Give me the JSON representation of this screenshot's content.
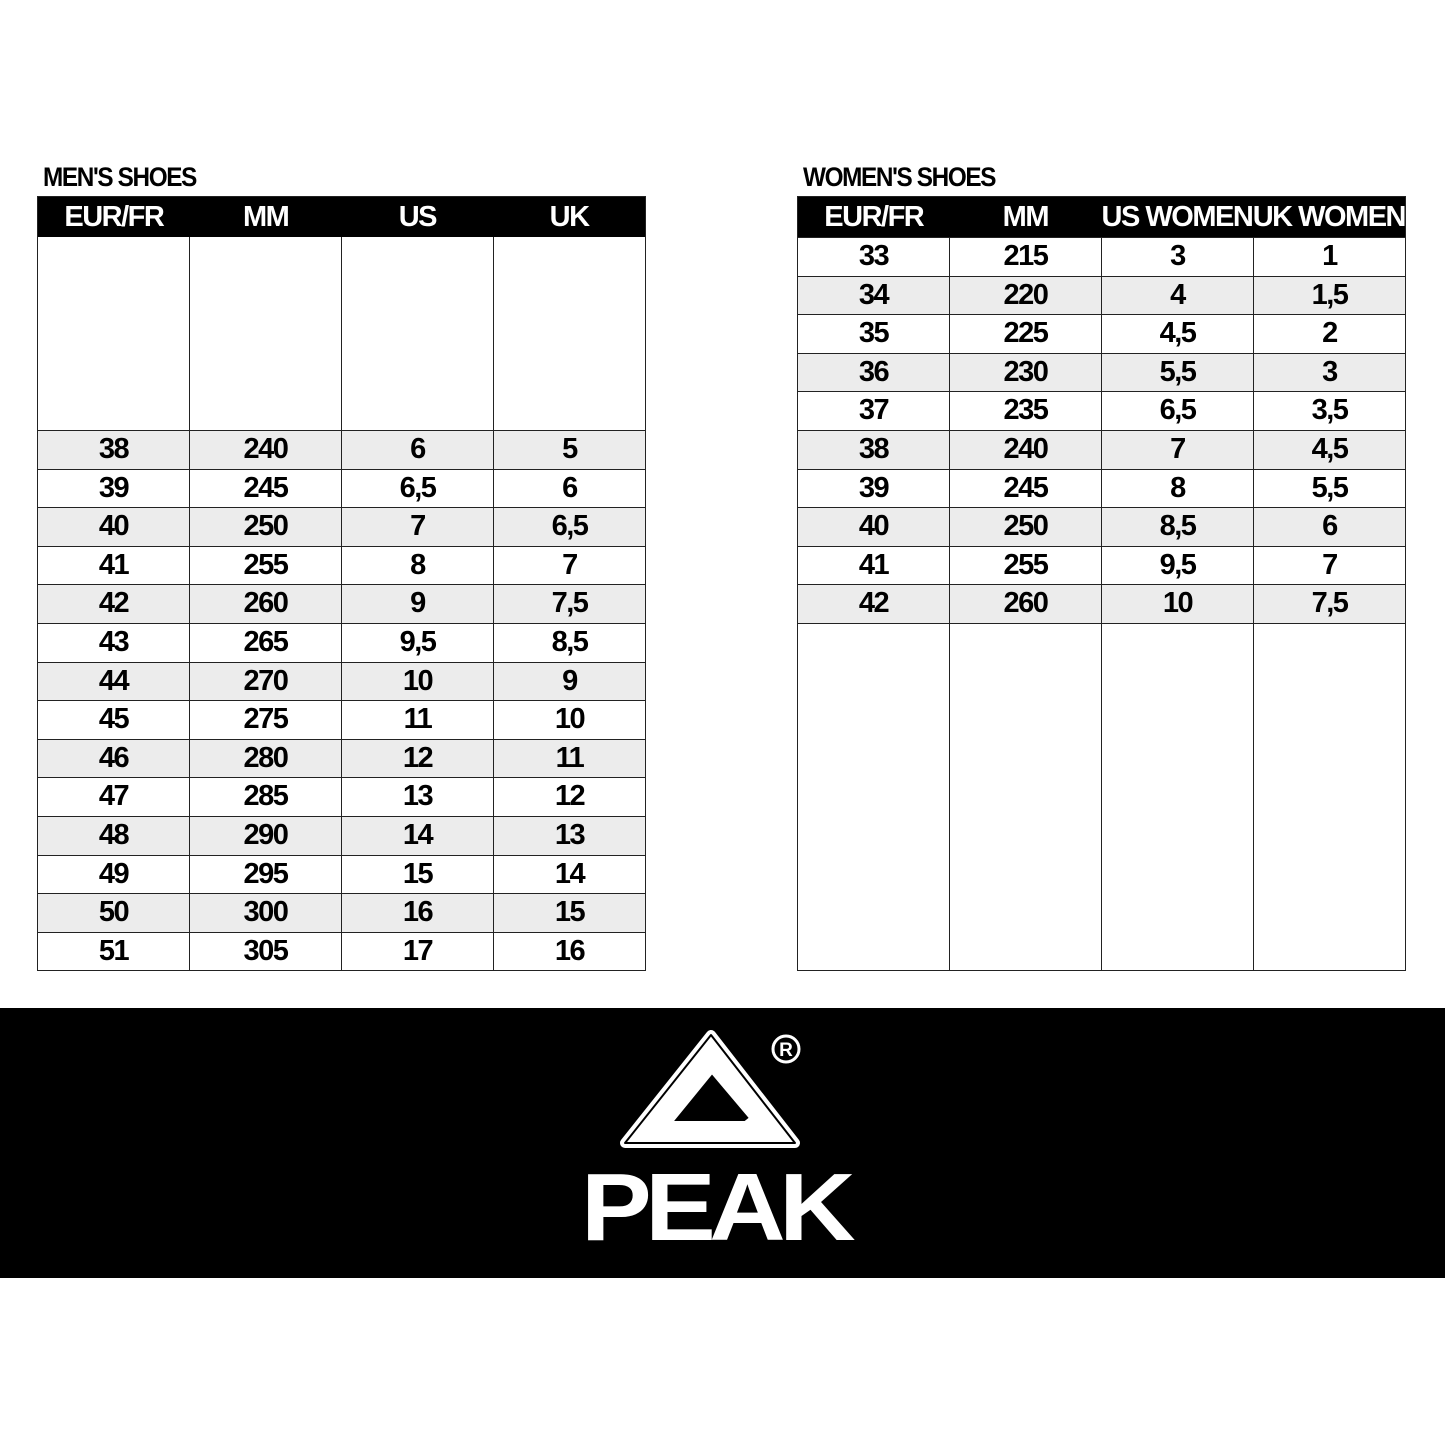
{
  "men": {
    "title": "MEN'S SHOES",
    "headers": [
      "EUR/FR",
      "MM",
      "US",
      "UK"
    ],
    "rows": [
      [
        "38",
        "240",
        "6",
        "5"
      ],
      [
        "39",
        "245",
        "6,5",
        "6"
      ],
      [
        "40",
        "250",
        "7",
        "6,5"
      ],
      [
        "41",
        "255",
        "8",
        "7"
      ],
      [
        "42",
        "260",
        "9",
        "7,5"
      ],
      [
        "43",
        "265",
        "9,5",
        "8,5"
      ],
      [
        "44",
        "270",
        "10",
        "9"
      ],
      [
        "45",
        "275",
        "11",
        "10"
      ],
      [
        "46",
        "280",
        "12",
        "11"
      ],
      [
        "47",
        "285",
        "13",
        "12"
      ],
      [
        "48",
        "290",
        "14",
        "13"
      ],
      [
        "49",
        "295",
        "15",
        "14"
      ],
      [
        "50",
        "300",
        "16",
        "15"
      ],
      [
        "51",
        "305",
        "17",
        "16"
      ]
    ]
  },
  "women": {
    "title": "WOMEN'S SHOES",
    "headers": [
      "EUR/FR",
      "MM",
      "US WOMEN",
      "UK WOMEN"
    ],
    "rows": [
      [
        "33",
        "215",
        "3",
        "1"
      ],
      [
        "34",
        "220",
        "4",
        "1,5"
      ],
      [
        "35",
        "225",
        "4,5",
        "2"
      ],
      [
        "36",
        "230",
        "5,5",
        "3"
      ],
      [
        "37",
        "235",
        "6,5",
        "3,5"
      ],
      [
        "38",
        "240",
        "7",
        "4,5"
      ],
      [
        "39",
        "245",
        "8",
        "5,5"
      ],
      [
        "40",
        "250",
        "8,5",
        "6"
      ],
      [
        "41",
        "255",
        "9,5",
        "7"
      ],
      [
        "42",
        "260",
        "10",
        "7,5"
      ]
    ]
  },
  "footer": {
    "logo_text": "PEAK",
    "registered_mark": "R"
  },
  "colors": {
    "header_bg": "#000000",
    "shade_row": "#ececec",
    "banner_bg": "#000000"
  }
}
